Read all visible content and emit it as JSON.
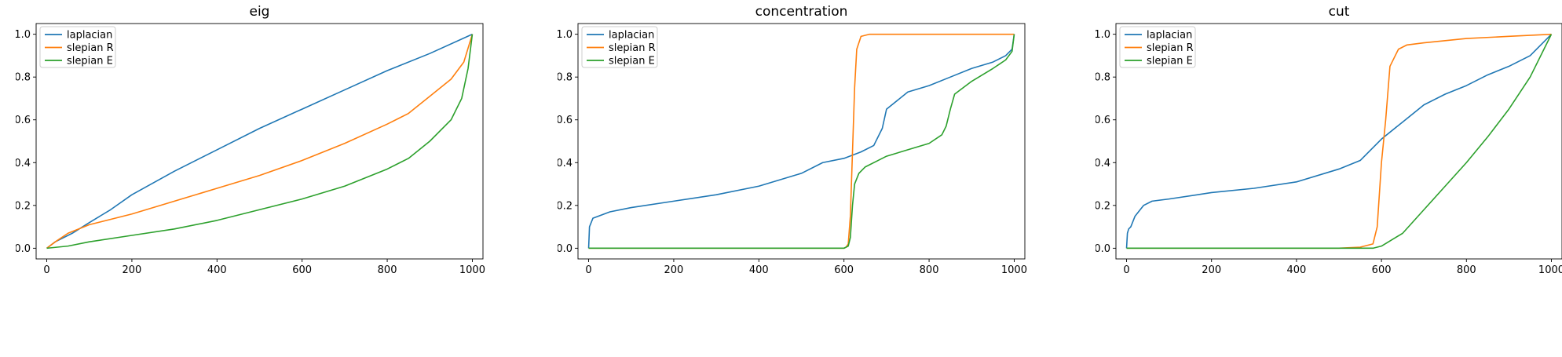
{
  "figure": {
    "xlim": [
      -25,
      1025
    ],
    "ylim": [
      -0.05,
      1.05
    ],
    "xticks": [
      0,
      200,
      400,
      600,
      800,
      1000
    ],
    "yticks": [
      0.0,
      0.2,
      0.4,
      0.6,
      0.8,
      1.0
    ],
    "legend_position": "upper-left",
    "grid": false
  },
  "chart_data": [
    {
      "type": "line",
      "title": "eig",
      "xlabel": "",
      "ylabel": "",
      "series": [
        {
          "name": "laplacian",
          "color": "#1f77b4",
          "points": [
            [
              0,
              0
            ],
            [
              20,
              0.03
            ],
            [
              60,
              0.07
            ],
            [
              100,
              0.12
            ],
            [
              150,
              0.18
            ],
            [
              200,
              0.25
            ],
            [
              300,
              0.36
            ],
            [
              400,
              0.46
            ],
            [
              500,
              0.56
            ],
            [
              600,
              0.65
            ],
            [
              700,
              0.74
            ],
            [
              800,
              0.83
            ],
            [
              900,
              0.91
            ],
            [
              1000,
              1.0
            ]
          ]
        },
        {
          "name": "slepian R",
          "color": "#ff7f0e",
          "points": [
            [
              0,
              0
            ],
            [
              20,
              0.03
            ],
            [
              50,
              0.07
            ],
            [
              100,
              0.11
            ],
            [
              200,
              0.16
            ],
            [
              300,
              0.22
            ],
            [
              400,
              0.28
            ],
            [
              500,
              0.34
            ],
            [
              600,
              0.41
            ],
            [
              700,
              0.49
            ],
            [
              800,
              0.58
            ],
            [
              850,
              0.63
            ],
            [
              900,
              0.71
            ],
            [
              950,
              0.79
            ],
            [
              980,
              0.87
            ],
            [
              1000,
              1.0
            ]
          ]
        },
        {
          "name": "slepian E",
          "color": "#2ca02c",
          "points": [
            [
              0,
              0
            ],
            [
              50,
              0.01
            ],
            [
              100,
              0.03
            ],
            [
              200,
              0.06
            ],
            [
              300,
              0.09
            ],
            [
              400,
              0.13
            ],
            [
              500,
              0.18
            ],
            [
              600,
              0.23
            ],
            [
              700,
              0.29
            ],
            [
              800,
              0.37
            ],
            [
              850,
              0.42
            ],
            [
              900,
              0.5
            ],
            [
              950,
              0.6
            ],
            [
              975,
              0.7
            ],
            [
              990,
              0.84
            ],
            [
              1000,
              1.0
            ]
          ]
        }
      ]
    },
    {
      "type": "line",
      "title": "concentration",
      "xlabel": "",
      "ylabel": "",
      "series": [
        {
          "name": "laplacian",
          "color": "#1f77b4",
          "points": [
            [
              0,
              0
            ],
            [
              2,
              0.1
            ],
            [
              10,
              0.14
            ],
            [
              50,
              0.17
            ],
            [
              100,
              0.19
            ],
            [
              200,
              0.22
            ],
            [
              300,
              0.25
            ],
            [
              400,
              0.29
            ],
            [
              500,
              0.35
            ],
            [
              550,
              0.4
            ],
            [
              600,
              0.42
            ],
            [
              640,
              0.45
            ],
            [
              670,
              0.48
            ],
            [
              690,
              0.56
            ],
            [
              700,
              0.65
            ],
            [
              750,
              0.73
            ],
            [
              800,
              0.76
            ],
            [
              850,
              0.8
            ],
            [
              900,
              0.84
            ],
            [
              950,
              0.87
            ],
            [
              980,
              0.9
            ],
            [
              995,
              0.93
            ],
            [
              1000,
              1.0
            ]
          ]
        },
        {
          "name": "slepian R",
          "color": "#ff7f0e",
          "points": [
            [
              0,
              0
            ],
            [
              600,
              0
            ],
            [
              605,
              0.005
            ],
            [
              610,
              0.02
            ],
            [
              615,
              0.15
            ],
            [
              620,
              0.45
            ],
            [
              625,
              0.75
            ],
            [
              630,
              0.93
            ],
            [
              640,
              0.99
            ],
            [
              660,
              1.0
            ],
            [
              1000,
              1.0
            ]
          ]
        },
        {
          "name": "slepian E",
          "color": "#2ca02c",
          "points": [
            [
              0,
              0
            ],
            [
              600,
              0
            ],
            [
              610,
              0.01
            ],
            [
              615,
              0.05
            ],
            [
              620,
              0.2
            ],
            [
              625,
              0.3
            ],
            [
              635,
              0.35
            ],
            [
              650,
              0.38
            ],
            [
              680,
              0.41
            ],
            [
              700,
              0.43
            ],
            [
              750,
              0.46
            ],
            [
              800,
              0.49
            ],
            [
              830,
              0.53
            ],
            [
              840,
              0.57
            ],
            [
              850,
              0.65
            ],
            [
              860,
              0.72
            ],
            [
              900,
              0.78
            ],
            [
              950,
              0.84
            ],
            [
              980,
              0.88
            ],
            [
              995,
              0.92
            ],
            [
              1000,
              1.0
            ]
          ]
        }
      ]
    },
    {
      "type": "line",
      "title": "cut",
      "xlabel": "",
      "ylabel": "",
      "series": [
        {
          "name": "laplacian",
          "color": "#1f77b4",
          "points": [
            [
              0,
              0
            ],
            [
              2,
              0.07
            ],
            [
              5,
              0.09
            ],
            [
              10,
              0.1
            ],
            [
              20,
              0.15
            ],
            [
              40,
              0.2
            ],
            [
              60,
              0.22
            ],
            [
              100,
              0.23
            ],
            [
              200,
              0.26
            ],
            [
              300,
              0.28
            ],
            [
              400,
              0.31
            ],
            [
              500,
              0.37
            ],
            [
              550,
              0.41
            ],
            [
              600,
              0.51
            ],
            [
              650,
              0.59
            ],
            [
              700,
              0.67
            ],
            [
              750,
              0.72
            ],
            [
              800,
              0.76
            ],
            [
              850,
              0.81
            ],
            [
              900,
              0.85
            ],
            [
              950,
              0.9
            ],
            [
              1000,
              1.0
            ]
          ]
        },
        {
          "name": "slepian R",
          "color": "#ff7f0e",
          "points": [
            [
              0,
              0
            ],
            [
              500,
              0
            ],
            [
              550,
              0.005
            ],
            [
              580,
              0.02
            ],
            [
              590,
              0.1
            ],
            [
              600,
              0.4
            ],
            [
              610,
              0.6
            ],
            [
              620,
              0.85
            ],
            [
              640,
              0.93
            ],
            [
              660,
              0.95
            ],
            [
              700,
              0.96
            ],
            [
              800,
              0.98
            ],
            [
              900,
              0.99
            ],
            [
              1000,
              1.0
            ]
          ]
        },
        {
          "name": "slepian E",
          "color": "#2ca02c",
          "points": [
            [
              0,
              0
            ],
            [
              580,
              0
            ],
            [
              600,
              0.01
            ],
            [
              650,
              0.07
            ],
            [
              700,
              0.18
            ],
            [
              750,
              0.29
            ],
            [
              800,
              0.4
            ],
            [
              850,
              0.52
            ],
            [
              900,
              0.65
            ],
            [
              950,
              0.8
            ],
            [
              1000,
              1.0
            ]
          ]
        }
      ]
    }
  ]
}
